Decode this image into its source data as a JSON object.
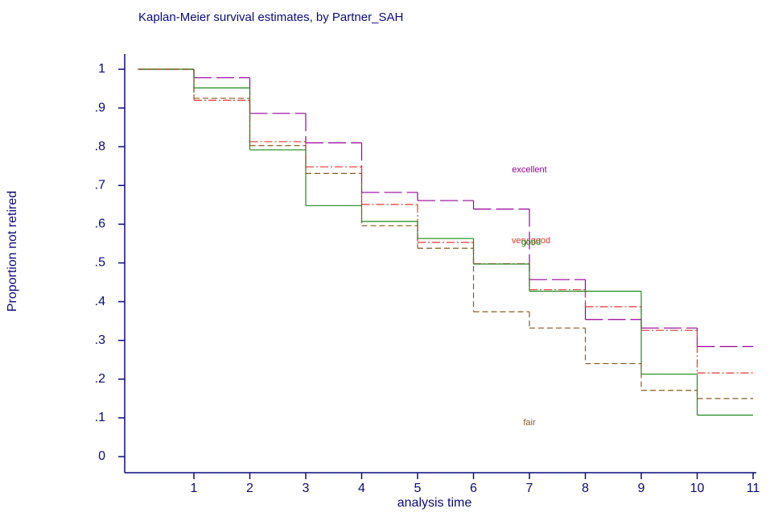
{
  "chart_data": {
    "type": "step",
    "title": "Kaplan-Meier survival estimates, by Partner_SAH",
    "x_label": "analysis time",
    "y_label": "Proportion not retired",
    "x": [
      0,
      1,
      2,
      3,
      4,
      5,
      6,
      7,
      8,
      9,
      10
    ],
    "xlim": [
      0,
      11
    ],
    "xticks": [
      1,
      2,
      3,
      4,
      5,
      6,
      7,
      8,
      9,
      10,
      11
    ],
    "ylim": [
      0,
      1
    ],
    "yticks": [
      0,
      {
        "value": 0.1,
        "label": ".1"
      },
      {
        "value": 0.2,
        "label": ".2"
      },
      {
        "value": 0.3,
        "label": ".3"
      },
      {
        "value": 0.4,
        "label": ".4"
      },
      {
        "value": 0.5,
        "label": ".5"
      },
      {
        "value": 0.6,
        "label": ".6"
      },
      {
        "value": 0.7,
        "label": ".7"
      },
      {
        "value": 0.8,
        "label": ".8"
      },
      {
        "value": 0.9,
        "label": ".9"
      },
      1
    ],
    "series": [
      {
        "name": "excellent",
        "color": "#990099",
        "values": [
          1,
          0.978,
          0.886,
          0.81,
          0.682,
          0.661,
          0.639,
          0.457,
          0.354,
          0.332,
          0.284
        ]
      },
      {
        "name": "very good",
        "color": "#e8352a",
        "values": [
          1,
          0.92,
          0.813,
          0.748,
          0.651,
          0.553,
          0.498,
          0.431,
          0.387,
          0.326,
          0.216
        ]
      },
      {
        "name": "good",
        "color": "#1a8a1a",
        "values": [
          1,
          0.952,
          0.792,
          0.648,
          0.607,
          0.563,
          0.497,
          0.427,
          0.427,
          0.213,
          0.107
        ]
      },
      {
        "name": "fair",
        "color": "#8b5a1e",
        "values": [
          1,
          0.925,
          0.803,
          0.731,
          0.596,
          0.538,
          0.374,
          0.332,
          0.24,
          0.171,
          0.15
        ]
      }
    ]
  }
}
